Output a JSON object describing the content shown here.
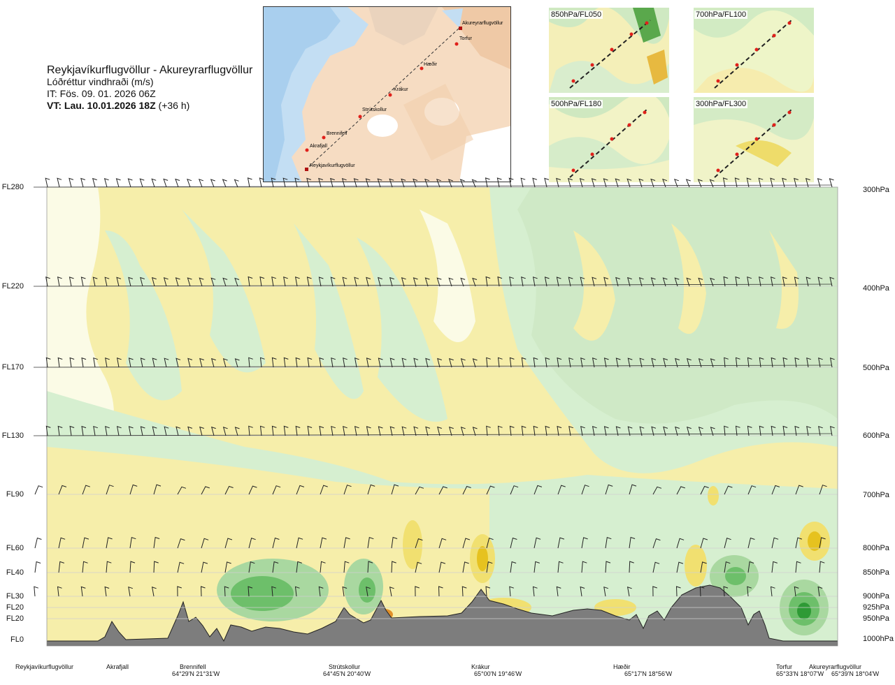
{
  "header": {
    "route": "Reykjavíkurflugvöllur - Akureyrarflugvöllur",
    "variable": "Lóðréttur vindhraði (m/s)",
    "it": "IT: Fös. 09. 01. 2026 06Z",
    "vt_bold": "VT: Lau. 10.01.2026 18Z",
    "vt_rest": " (+36 h)"
  },
  "map": {
    "labels": [
      "Akureyrarflugvöllur",
      "Torfur",
      "Hæðir",
      "Krákur",
      "Strútskollur",
      "Brennifell",
      "Akrafjall",
      "Reykjavíkurflugvöllur"
    ]
  },
  "thumbnails": [
    {
      "label": "850hPa/FL050"
    },
    {
      "label": "700hPa/FL100"
    },
    {
      "label": "500hPa/FL180"
    },
    {
      "label": "300hPa/FL300"
    }
  ],
  "chart_data": {
    "type": "heatmap",
    "title": "Lóðréttur vindhraði (m/s)",
    "y_levels": [
      {
        "fl": "FL280",
        "hpa": "300hPa"
      },
      {
        "fl": "FL220",
        "hpa": "400hPa"
      },
      {
        "fl": "FL170",
        "hpa": "500hPa"
      },
      {
        "fl": "FL130",
        "hpa": "600hPa"
      },
      {
        "fl": "FL90",
        "hpa": "700hPa"
      },
      {
        "fl": "FL60",
        "hpa": "800hPa"
      },
      {
        "fl": "FL40",
        "hpa": "850hPa"
      },
      {
        "fl": "FL30",
        "hpa": "900hPa"
      },
      {
        "fl": "FL20",
        "hpa": "925hPa"
      },
      {
        "fl": "FL20",
        "hpa": "950hPa"
      },
      {
        "fl": "FL0",
        "hpa": "1000hPa"
      }
    ],
    "x_locations": [
      {
        "name": "Reykjavíkurflugvöllur",
        "coord": ""
      },
      {
        "name": "Akrafjall",
        "coord": ""
      },
      {
        "name": "Brennifell",
        "coord": "64°29'N 21°31'W"
      },
      {
        "name": "Strútskollur",
        "coord": "64°45'N 20°40'W"
      },
      {
        "name": "Krákur",
        "coord": "65°00'N 19°46'W"
      },
      {
        "name": "Hæðir",
        "coord": "65°17'N 18°56'W"
      },
      {
        "name": "Torfur",
        "coord": "65°33'N 18°07'W"
      },
      {
        "name": "Akureyrarflugvöllur",
        "coord": "65°39'N 18°04'W"
      }
    ],
    "colors": {
      "strong_up": "#2e9a35",
      "up": "#6dbf6a",
      "weak_up": "#a9d8a0",
      "very_weak_up": "#d6efd0",
      "near_zero": "#fbfbe6",
      "weak_down": "#f6eeaa",
      "down": "#f1e070",
      "strong_down": "#e6c21f",
      "very_strong_down": "#e0902a",
      "terrain": "#7d7d7d"
    },
    "grid": true
  }
}
